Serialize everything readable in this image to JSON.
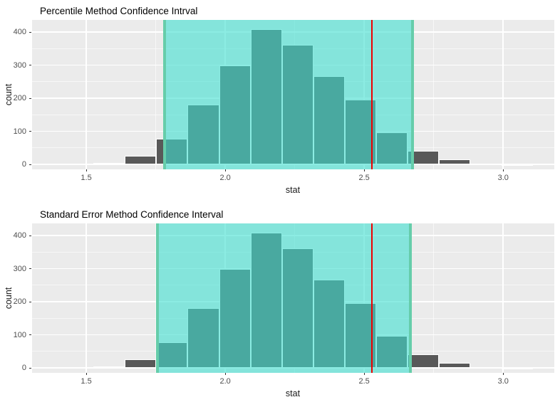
{
  "colors": {
    "panel_bg": "#EBEBEB",
    "grid": "#FFFFFF",
    "bar_fill": "#595959",
    "bar_border": "#FFFFFF",
    "ci_fill": "#40E0D0",
    "ci_fill_alpha": 0.6,
    "ci_edge": "#66CDAA",
    "observed_line": "#EE0000",
    "tick_label": "#4D4D4D",
    "axis_title": "#1A1A1A",
    "title": "#000000"
  },
  "chart_data": [
    {
      "type": "histogram",
      "title": "Percentile Method Confidence Intrval",
      "xlabel": "stat",
      "ylabel": "count",
      "bin_start": 1.413,
      "bin_width": 0.113,
      "counts": [
        2,
        5,
        25,
        78,
        180,
        300,
        408,
        362,
        267,
        196,
        98,
        42,
        15,
        3,
        1
      ],
      "x_ticks": [
        {
          "value": 1.5,
          "label": "1.5"
        },
        {
          "value": 2.0,
          "label": "2.0"
        },
        {
          "value": 2.5,
          "label": "2.5"
        },
        {
          "value": 3.0,
          "label": "3.0"
        }
      ],
      "y_ticks": [
        {
          "value": 0,
          "label": "0"
        },
        {
          "value": 100,
          "label": "100"
        },
        {
          "value": 200,
          "label": "200"
        },
        {
          "value": 300,
          "label": "300"
        },
        {
          "value": 400,
          "label": "400"
        }
      ],
      "x_minor": [
        1.75,
        2.25,
        2.75
      ],
      "y_minor": [
        50,
        150,
        250,
        350
      ],
      "xlim": [
        1.305,
        3.184
      ],
      "ylim": [
        -15,
        437
      ],
      "ci_lower": 1.782,
      "ci_upper": 2.673,
      "observed_stat": 2.528,
      "grid": true,
      "legend": "none"
    },
    {
      "type": "histogram",
      "title": "Standard Error Method Confidence Interval",
      "xlabel": "stat",
      "ylabel": "count",
      "bin_start": 1.413,
      "bin_width": 0.113,
      "counts": [
        2,
        5,
        25,
        78,
        180,
        300,
        408,
        362,
        267,
        196,
        98,
        42,
        15,
        3,
        1
      ],
      "x_ticks": [
        {
          "value": 1.5,
          "label": "1.5"
        },
        {
          "value": 2.0,
          "label": "2.0"
        },
        {
          "value": 2.5,
          "label": "2.5"
        },
        {
          "value": 3.0,
          "label": "3.0"
        }
      ],
      "y_ticks": [
        {
          "value": 0,
          "label": "0"
        },
        {
          "value": 100,
          "label": "100"
        },
        {
          "value": 200,
          "label": "200"
        },
        {
          "value": 300,
          "label": "300"
        },
        {
          "value": 400,
          "label": "400"
        }
      ],
      "x_minor": [
        1.75,
        2.25,
        2.75
      ],
      "y_minor": [
        50,
        150,
        250,
        350
      ],
      "xlim": [
        1.305,
        3.184
      ],
      "ylim": [
        -15,
        437
      ],
      "ci_lower": 1.757,
      "ci_upper": 2.665,
      "observed_stat": 2.528,
      "grid": true,
      "legend": "none"
    }
  ]
}
